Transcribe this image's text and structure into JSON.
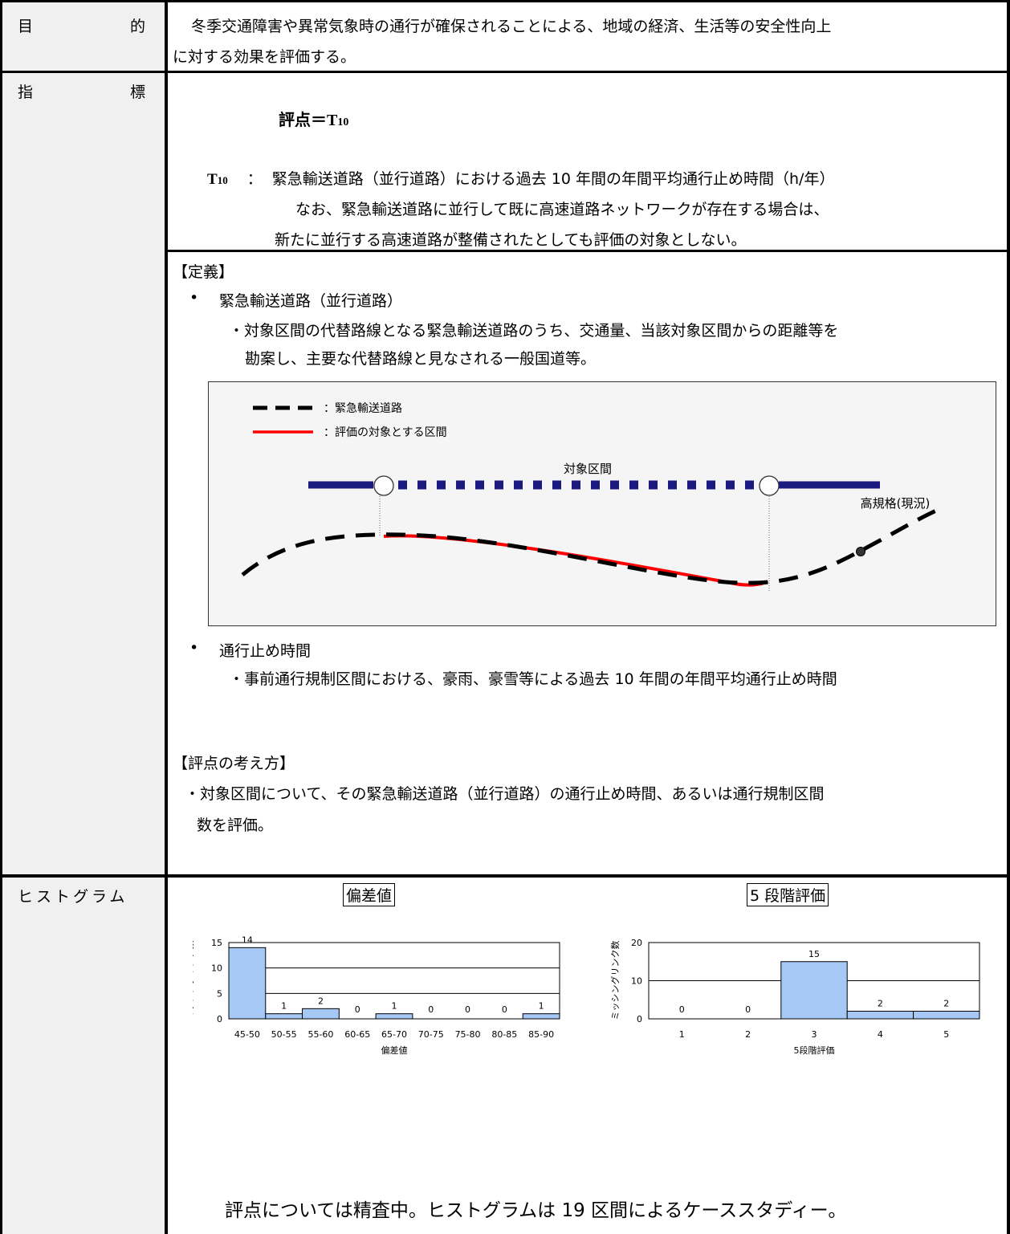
{
  "rows": {
    "purpose_label": "目　　　　　　的",
    "purpose_line1": "冬季交通障害や異常気象時の通行が確保されることによる、地域の経済、生活等の安全性向上",
    "purpose_line2": "に対する効果を評価する。",
    "indicator_label": "指　　　　　　標",
    "formula_prefix": "評点＝",
    "formula_var": "T",
    "formula_sub": "10",
    "def_var": "T",
    "def_sub": "10",
    "def_colon": "：",
    "def_line1": "緊急輸送道路（並行道路）における過去 10 年間の年間平均通行止め時間（h/年）",
    "def_line2": "なお、緊急輸送道路に並行して既に高速道路ネットワークが存在する場合は、",
    "def_line3": "新たに並行する高速道路が整備されたとしても評価の対象としない。",
    "histogram_label": "ヒストグラム"
  },
  "definition": {
    "heading": "【定義】",
    "bullet1_title": "緊急輸送道路（並行道路）",
    "bullet1_line1": "・対象区間の代替路線となる緊急輸送道路のうち、交通量、当該対象区間からの距離等を",
    "bullet1_line2": "勘案し、主要な代替路線と見なされる一般国道等。",
    "bullet2_title": "通行止め時間",
    "bullet2_line1": "・事前通行規制区間における、豪雨、豪雪等による過去 10 年間の年間平均通行止め時間"
  },
  "figure": {
    "legend_dashed": "：緊急輸送道路",
    "legend_red": "：評価の対象とする区間",
    "section_label": "対象区間",
    "highway_label": "高規格(現況)"
  },
  "scoring": {
    "heading": "【評点の考え方】",
    "line1": "・対象区間について、その緊急輸送道路（並行道路）の通行止め時間、あるいは通行規制区間",
    "line2": "数を評価。"
  },
  "histograms": {
    "title_left": "偏差値",
    "title_right": "5 段階評価",
    "note": "評点については精査中。ヒストグラムは 19 区間によるケーススタディー。"
  },
  "colors": {
    "bar_fill": "#a6c8f5",
    "road_red": "#ff0000",
    "highway_navy": "#1a1a80",
    "left_bg": "#f0f0f0"
  },
  "chart_data": [
    {
      "type": "bar",
      "categories": [
        "45-50",
        "50-55",
        "55-60",
        "60-65",
        "65-70",
        "70-75",
        "75-80",
        "80-85",
        "85-90"
      ],
      "values": [
        14,
        1,
        2,
        0,
        1,
        0,
        0,
        0,
        1
      ],
      "title": "",
      "xlabel": "偏差値",
      "ylabel": "ミッシングリンク数",
      "ylim": [
        0,
        15
      ],
      "yticks": [
        0,
        5,
        10,
        15
      ],
      "grid": true
    },
    {
      "type": "bar",
      "categories": [
        "1",
        "2",
        "3",
        "4",
        "5"
      ],
      "values": [
        0,
        0,
        15,
        2,
        2
      ],
      "title": "",
      "xlabel": "5段階評価",
      "ylabel": "ミッシングリンク数",
      "ylim": [
        0,
        20
      ],
      "yticks": [
        0,
        10,
        20
      ],
      "grid": true
    }
  ]
}
